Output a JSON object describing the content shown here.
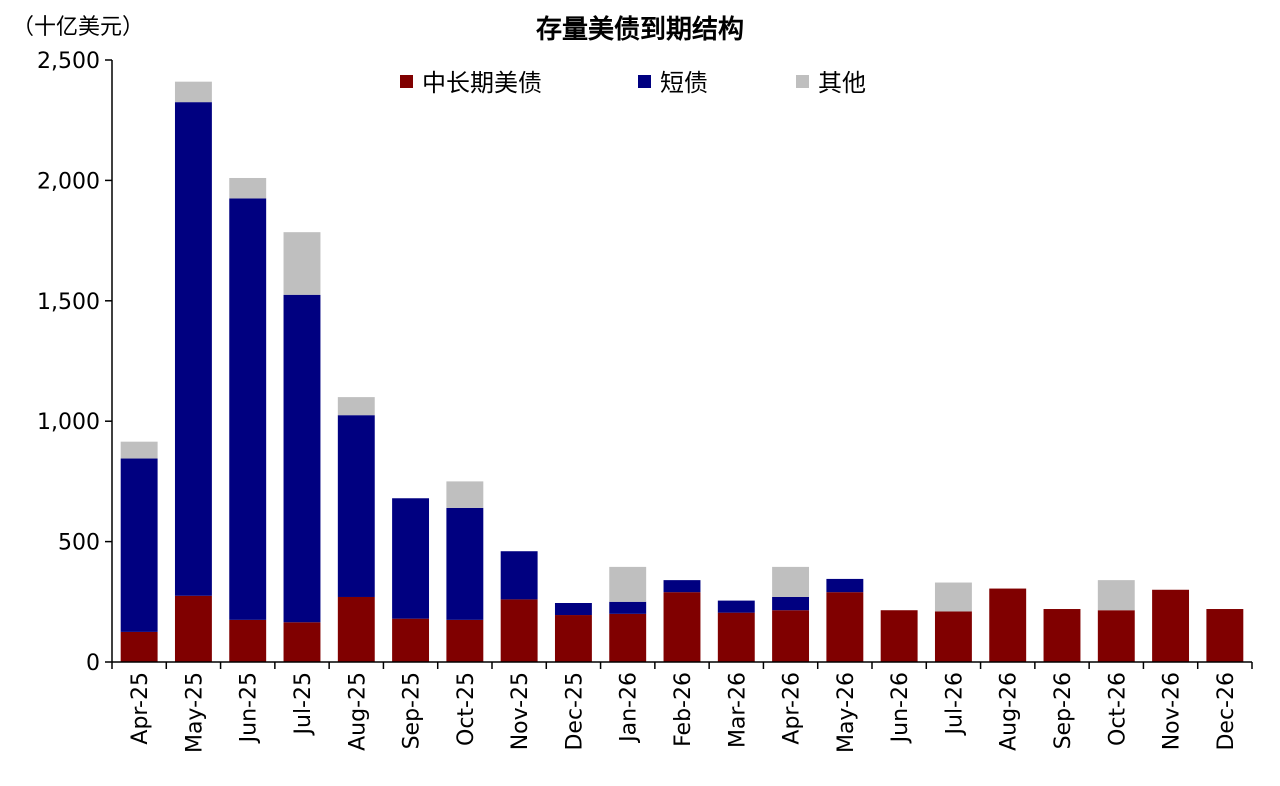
{
  "chart_data": {
    "type": "bar",
    "stacked": true,
    "title": "存量美债到期结构",
    "unit_label": "（十亿美元）",
    "categories": [
      "Apr-25",
      "May-25",
      "Jun-25",
      "Jul-25",
      "Aug-25",
      "Sep-25",
      "Oct-25",
      "Nov-25",
      "Dec-25",
      "Jan-26",
      "Feb-26",
      "Mar-26",
      "Apr-26",
      "May-26",
      "Jun-26",
      "Jul-26",
      "Aug-26",
      "Sep-26",
      "Oct-26",
      "Nov-26",
      "Dec-26"
    ],
    "series": [
      {
        "name": "中长期美债",
        "color": "#800000",
        "values": [
          125,
          275,
          175,
          165,
          270,
          180,
          175,
          260,
          195,
          200,
          290,
          205,
          215,
          290,
          215,
          210,
          305,
          220,
          215,
          300,
          220
        ]
      },
      {
        "name": "短债",
        "color": "#000080",
        "values": [
          720,
          2050,
          1750,
          1360,
          755,
          500,
          465,
          200,
          50,
          50,
          50,
          50,
          55,
          55,
          0,
          0,
          0,
          0,
          0,
          0,
          0
        ]
      },
      {
        "name": "其他",
        "color": "#bfbfbf",
        "values": [
          70,
          85,
          85,
          260,
          75,
          0,
          110,
          0,
          0,
          145,
          0,
          0,
          125,
          0,
          0,
          120,
          0,
          0,
          125,
          0,
          0
        ]
      }
    ],
    "ylim": [
      0,
      2500
    ],
    "yticks": [
      0,
      500,
      1000,
      1500,
      2000,
      2500
    ],
    "ytick_labels": [
      "0",
      "500",
      "1,000",
      "1,500",
      "2,000",
      "2,500"
    ],
    "grid": false,
    "legend_position": "top"
  }
}
